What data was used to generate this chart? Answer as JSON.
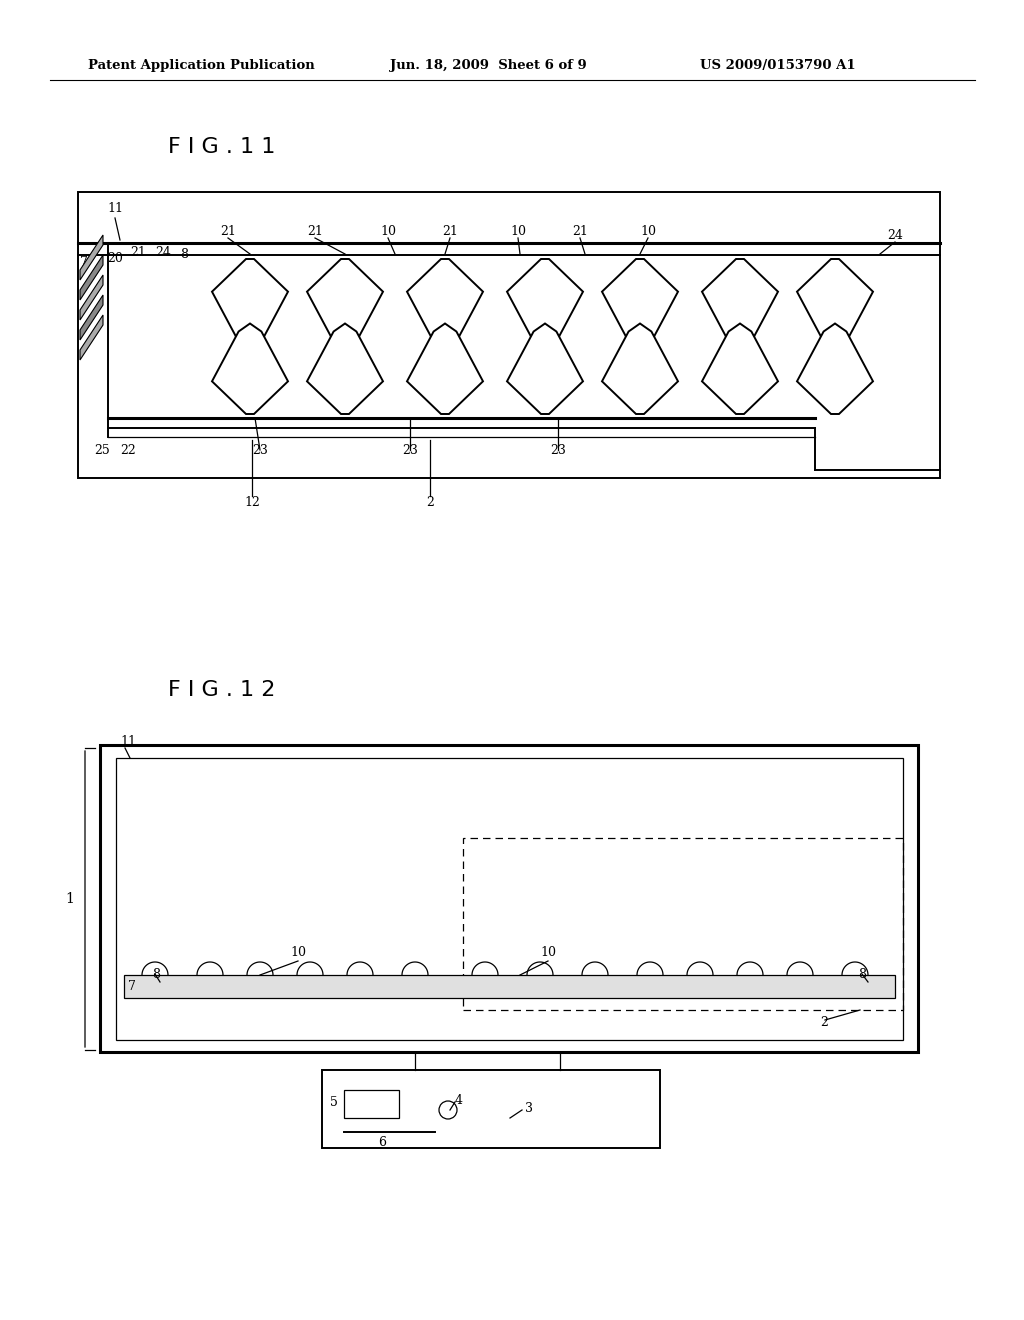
{
  "bg_color": "#ffffff",
  "header_left": "Patent Application Publication",
  "header_mid": "Jun. 18, 2009  Sheet 6 of 9",
  "header_right": "US 2009/0153790 A1",
  "fig11_title": "F I G . 1 1",
  "fig12_title": "F I G . 1 2",
  "text_color": "#000000",
  "line_color": "#000000",
  "lw_thick": 2.2,
  "lw_med": 1.4,
  "lw_thin": 0.9,
  "label_fs": 9
}
